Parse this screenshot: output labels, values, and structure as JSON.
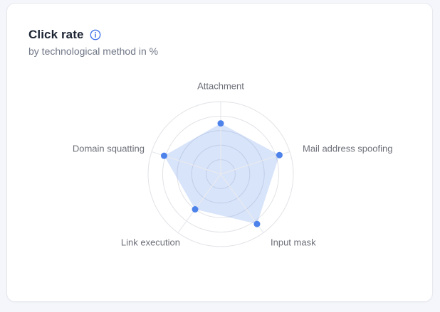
{
  "card": {
    "title": "Click rate",
    "subtitle": "by technological method in %",
    "info_icon": "info-circle"
  },
  "colors": {
    "accent": "#4D82EA",
    "series_fill": "rgba(77,130,234,0.22)",
    "grid_line": "#E2E3E7",
    "axis_line": "#E9EAEE",
    "axis_label": "#6E7079",
    "title_text": "#1C2433",
    "subtitle_text": "#6F7686",
    "info_icon": "#4573E8",
    "card_background": "#FFFFFF",
    "card_border": "#E6E8EE",
    "page_background": "#F4F6FB"
  },
  "chart_data": {
    "type": "radar",
    "title": "Click rate",
    "subtitle": "by technological method in %",
    "unit": "%",
    "categories": [
      "Attachment",
      "Mail address spoofing",
      "Input mask",
      "Link execution",
      "Domain squatting"
    ],
    "values": [
      70,
      85,
      85,
      60,
      82
    ],
    "max": 100,
    "rings": [
      20,
      40,
      60,
      80,
      100
    ],
    "grid": "circular",
    "start_axis": "top",
    "direction": "clockwise",
    "legend": false,
    "tick_labels": false
  }
}
